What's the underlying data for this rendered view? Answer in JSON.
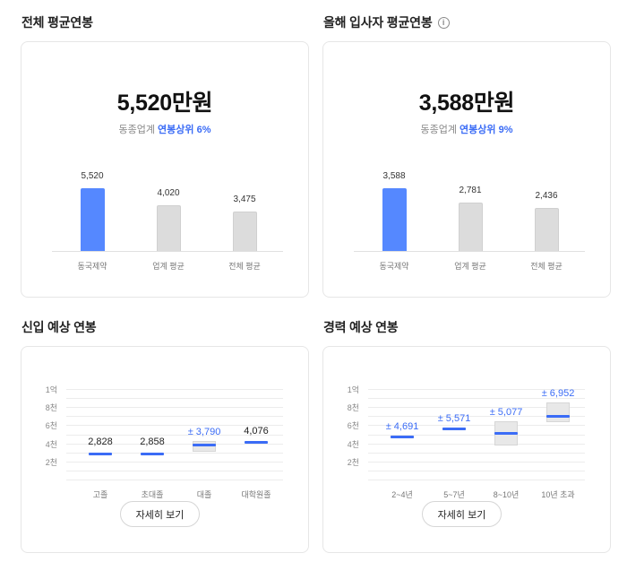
{
  "sections": {
    "overall": {
      "title": "전체 평균연봉"
    },
    "newhire": {
      "title": "올해 입사자 평균연봉"
    },
    "entry": {
      "title": "신입 예상 연봉"
    },
    "career": {
      "title": "경력 예상 연봉"
    }
  },
  "overall_card": {
    "value": "5,520만원",
    "rank_prefix": "동종업계",
    "rank_highlight": "연봉상위 6%",
    "accent_color": "#3b6cf6"
  },
  "newhire_card": {
    "value": "3,588만원",
    "rank_prefix": "동종업계",
    "rank_highlight": "연봉상위 9%",
    "accent_color": "#3b6cf6"
  },
  "detail_button_label": "자세히 보기",
  "chart_data": [
    {
      "type": "bar",
      "title": "",
      "categories": [
        "동국제약",
        "업계 평균",
        "전체 평균"
      ],
      "values": [
        5520,
        4020,
        3475
      ],
      "value_labels": [
        "5,520",
        "4,020",
        "3,475"
      ],
      "highlight_index": 0,
      "ylim": [
        0,
        6000
      ],
      "grid": false
    },
    {
      "type": "bar",
      "title": "",
      "categories": [
        "동국제약",
        "업계 평균",
        "전체 평균"
      ],
      "values": [
        3588,
        2781,
        2436
      ],
      "value_labels": [
        "3,588",
        "2,781",
        "2,436"
      ],
      "highlight_index": 0,
      "ylim": [
        0,
        6000
      ],
      "grid": false
    },
    {
      "type": "range",
      "categories": [
        "고졸",
        "초대졸",
        "대졸",
        "대학원졸"
      ],
      "values": [
        2828,
        2858,
        3790,
        4076
      ],
      "value_labels": [
        "2,828",
        "2,858",
        "± 3,790",
        "4,076"
      ],
      "range_low": [
        null,
        null,
        3100,
        null
      ],
      "range_high": [
        null,
        null,
        4250,
        null
      ],
      "label_blue": [
        false,
        false,
        true,
        false
      ],
      "y_ticks": [
        "1억",
        "8천",
        "6천",
        "4천",
        "2천"
      ],
      "y_tick_values": [
        10000,
        8000,
        6000,
        4000,
        2000
      ],
      "ylim": [
        0,
        10000
      ],
      "grid": true
    },
    {
      "type": "range",
      "categories": [
        "2~4년",
        "5~7년",
        "8~10년",
        "10년 초과"
      ],
      "values": [
        4691,
        5571,
        5077,
        6952
      ],
      "value_labels": [
        "± 4,691",
        "± 5,571",
        "± 5,077",
        "± 6,952"
      ],
      "range_low": [
        4550,
        5420,
        3750,
        6300
      ],
      "range_high": [
        4860,
        5700,
        6450,
        8500
      ],
      "label_blue": [
        true,
        true,
        true,
        true
      ],
      "y_ticks": [
        "1억",
        "8천",
        "6천",
        "4천",
        "2천"
      ],
      "y_tick_values": [
        10000,
        8000,
        6000,
        4000,
        2000
      ],
      "ylim": [
        0,
        10000
      ],
      "grid": true
    }
  ]
}
